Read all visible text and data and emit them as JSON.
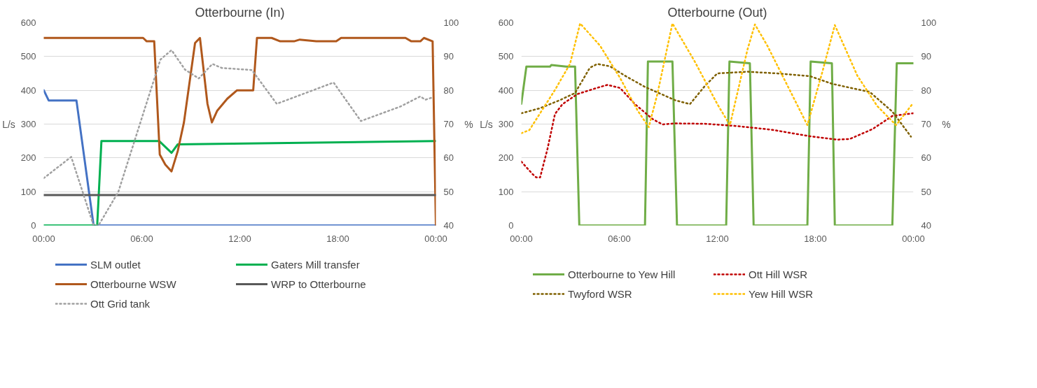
{
  "chart_data": [
    {
      "type": "line",
      "title": "Otterbourne (In)",
      "ylabel": "L/s",
      "y2label": "%",
      "xlim": [
        0,
        24
      ],
      "xticks": [
        {
          "value": 0,
          "label": "00:00"
        },
        {
          "value": 6,
          "label": "06:00"
        },
        {
          "value": 12,
          "label": "12:00"
        },
        {
          "value": 18,
          "label": "18:00"
        },
        {
          "value": 24,
          "label": "00:00"
        }
      ],
      "ylim": [
        0,
        600
      ],
      "yticks": [
        0,
        100,
        200,
        300,
        400,
        500,
        600
      ],
      "y2lim": [
        40,
        100
      ],
      "y2ticks": [
        40,
        50,
        60,
        70,
        80,
        90,
        100
      ],
      "grid": "y",
      "legend": "bottom",
      "series": [
        {
          "name": "SLM outlet",
          "color": "#4472c4",
          "line_style": "solid",
          "x": [
            0,
            0.3,
            1.4,
            2.0,
            3.05,
            24
          ],
          "values": [
            400,
            370,
            370,
            370,
            0,
            0
          ]
        },
        {
          "name": "Gaters Mill transfer",
          "color": "#00b050",
          "line_style": "solid",
          "x": [
            0,
            3.27,
            3.53,
            7.06,
            7.82,
            8.2,
            24
          ],
          "values": [
            0,
            0,
            250,
            250,
            215,
            240,
            250
          ]
        },
        {
          "name": "Otterbourne WSW",
          "color": "#b0581c",
          "line_style": "solid",
          "x": [
            0,
            6.08,
            6.3,
            6.76,
            7.1,
            7.44,
            7.82,
            8.2,
            8.58,
            9.26,
            9.56,
            10.02,
            10.29,
            10.62,
            11.23,
            11.83,
            12.82,
            13.05,
            13.95,
            14.47,
            15.32,
            15.67,
            16.68,
            17.9,
            18.2,
            22.14,
            22.5,
            23.05,
            23.27,
            23.8,
            24
          ],
          "values": [
            555,
            555,
            545,
            545,
            210,
            180,
            160,
            220,
            305,
            540,
            555,
            360,
            305,
            340,
            375,
            400,
            400,
            555,
            555,
            545,
            545,
            550,
            545,
            545,
            555,
            555,
            545,
            545,
            555,
            545,
            0
          ]
        },
        {
          "name": "WRP to Otterbourne",
          "color": "#595959",
          "line_style": "solid",
          "x": [
            0,
            24
          ],
          "values": [
            90,
            90
          ]
        },
        {
          "name": "Ott Grid tank",
          "color": "#a0a0a0",
          "line_style": "dotted",
          "axis": "y2",
          "x": [
            0,
            1.68,
            3.05,
            3.35,
            4.56,
            7.14,
            7.82,
            8.65,
            9.49,
            10.32,
            10.9,
            12.74,
            14.26,
            17.74,
            19.41,
            21.83,
            23.05,
            23.35,
            23.8
          ],
          "values": [
            54.0,
            60.3,
            40,
            40,
            49.9,
            89.1,
            91.9,
            86.1,
            83.5,
            87.8,
            86.6,
            86.0,
            76.0,
            82.3,
            70.9,
            75.2,
            78.2,
            77.2,
            77.9
          ]
        }
      ]
    },
    {
      "type": "line",
      "title": "Otterbourne (Out)",
      "ylabel": "L/s",
      "y2label": "%",
      "xlim": [
        0,
        24
      ],
      "xticks": [
        {
          "value": 0,
          "label": "00:00"
        },
        {
          "value": 6,
          "label": "06:00"
        },
        {
          "value": 12,
          "label": "12:00"
        },
        {
          "value": 18,
          "label": "18:00"
        },
        {
          "value": 24,
          "label": "00:00"
        }
      ],
      "ylim": [
        0,
        600
      ],
      "yticks": [
        0,
        100,
        200,
        300,
        400,
        500,
        600
      ],
      "y2lim": [
        40,
        100
      ],
      "y2ticks": [
        40,
        50,
        60,
        70,
        80,
        90,
        100
      ],
      "grid": "y",
      "legend": "bottom",
      "series": [
        {
          "name": "Otterbourne to Yew Hill",
          "color": "#70ad47",
          "line_style": "solid",
          "x": [
            0,
            0.31,
            1.76,
            1.84,
            2.75,
            3.29,
            3.55,
            7.57,
            7.75,
            9.25,
            9.53,
            12.54,
            12.74,
            13.99,
            14.22,
            17.51,
            17.71,
            19.01,
            19.19,
            22.71,
            22.98,
            24
          ],
          "values": [
            360,
            470,
            470,
            475,
            470,
            470,
            0,
            0,
            485,
            485,
            0,
            0,
            485,
            480,
            0,
            0,
            485,
            480,
            0,
            0,
            480,
            480
          ]
        },
        {
          "name": "Ott Hill WSR",
          "color": "#c00000",
          "line_style": "dotted",
          "axis": "y2",
          "x": [
            0,
            0.69,
            0.92,
            1.15,
            1.61,
            2.06,
            2.52,
            3.44,
            4.82,
            5.28,
            6.04,
            6.96,
            8.03,
            8.64,
            9.41,
            11.24,
            13.23,
            15.37,
            17.66,
            19.34,
            20.11,
            21.49,
            22.71,
            24
          ],
          "values": [
            58.9,
            55.2,
            54.2,
            54.2,
            62.8,
            73.0,
            75.9,
            78.9,
            81.0,
            81.6,
            80.7,
            75.9,
            71.5,
            69.9,
            70.2,
            70.1,
            69.4,
            68.3,
            66.4,
            65.4,
            65.6,
            68.5,
            72.4,
            73.2
          ]
        },
        {
          "name": "Twyford WSR",
          "color": "#7f6000",
          "line_style": "dotted",
          "axis": "y2",
          "x": [
            0,
            1.15,
            2.37,
            3.29,
            4.2,
            4.66,
            5.43,
            6.35,
            7.57,
            9.4,
            10.32,
            11.24,
            12.0,
            13.84,
            15.67,
            17.66,
            19.04,
            21.33,
            22.71,
            23.85
          ],
          "values": [
            73.2,
            74.7,
            77.1,
            79.2,
            86.7,
            87.8,
            87.1,
            84.3,
            81.0,
            77.1,
            75.9,
            81.3,
            85.0,
            85.5,
            85.0,
            84.2,
            81.9,
            79.5,
            73.7,
            66.3
          ]
        },
        {
          "name": "Yew Hill WSR",
          "color": "#ffc000",
          "line_style": "dotted",
          "axis": "y2",
          "x": [
            0,
            0.49,
            2.06,
            2.98,
            3.6,
            4.82,
            6.04,
            7.11,
            7.8,
            8.33,
            9.25,
            10.63,
            12.0,
            12.77,
            13.84,
            14.3,
            15.06,
            17.51,
            18.43,
            19.19,
            20.57,
            21.79,
            22.94,
            23.93
          ],
          "values": [
            67.3,
            68.2,
            80.1,
            87.8,
            99.8,
            93.2,
            83.7,
            74.1,
            69.1,
            78.9,
            99.8,
            88.4,
            75.9,
            69.7,
            92.0,
            99.5,
            93.2,
            69.7,
            85.5,
            99.3,
            84.3,
            75.3,
            69.7,
            75.9
          ]
        }
      ]
    }
  ]
}
